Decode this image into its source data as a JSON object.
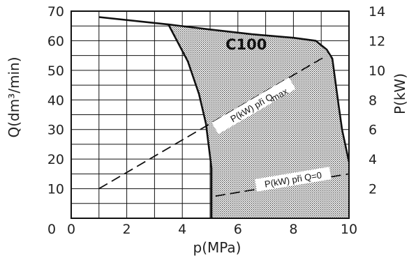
{
  "chart_data": {
    "type": "area",
    "x_axis": {
      "label": "p(MPa)",
      "range": [
        0,
        10
      ],
      "ticks": [
        0,
        2,
        4,
        6,
        8,
        10
      ],
      "tick_labels": [
        "0",
        "2",
        "4",
        "6",
        "8",
        "10"
      ],
      "grid_step": 1
    },
    "y_axis_left": {
      "label": "Q(dm³/min)",
      "range": [
        0,
        70
      ],
      "ticks": [
        10,
        20,
        30,
        40,
        50,
        60,
        70
      ],
      "tick_labels": [
        "10",
        "20",
        "30",
        "40",
        "50",
        "60",
        "70"
      ],
      "grid_step": 5
    },
    "y_axis_right": {
      "label": "P(kW)",
      "range": [
        0,
        14
      ],
      "ticks": [
        2,
        4,
        6,
        8,
        10,
        12,
        14
      ],
      "tick_labels": [
        "2",
        "4",
        "6",
        "8",
        "10",
        "12",
        "14"
      ]
    },
    "grid": true,
    "operating_region": {
      "label": "C100",
      "boundary": [
        {
          "x": 3.5,
          "y": 65.5
        },
        {
          "x": 5.0,
          "y": 63.8
        },
        {
          "x": 6.5,
          "y": 62.2
        },
        {
          "x": 8.0,
          "y": 61.0
        },
        {
          "x": 8.8,
          "y": 60.0
        },
        {
          "x": 9.2,
          "y": 57.0
        },
        {
          "x": 9.4,
          "y": 54.0
        },
        {
          "x": 9.6,
          "y": 40.0
        },
        {
          "x": 9.75,
          "y": 30.0
        },
        {
          "x": 10.0,
          "y": 19.0
        },
        {
          "x": 10.0,
          "y": 0.0
        },
        {
          "x": 5.05,
          "y": 0.0
        },
        {
          "x": 5.05,
          "y": 17.0
        },
        {
          "x": 4.85,
          "y": 32.0
        },
        {
          "x": 4.6,
          "y": 42.0
        },
        {
          "x": 4.2,
          "y": 53.0
        },
        {
          "x": 3.5,
          "y": 65.5
        }
      ]
    },
    "series": [
      {
        "axis": "left",
        "style": "solid",
        "points": [
          {
            "x": 1.0,
            "y": 68.0
          },
          {
            "x": 3.5,
            "y": 65.5
          },
          {
            "x": 5.0,
            "y": 63.8
          },
          {
            "x": 6.5,
            "y": 62.2
          },
          {
            "x": 8.0,
            "y": 61.0
          },
          {
            "x": 8.8,
            "y": 60.0
          },
          {
            "x": 9.2,
            "y": 57.0
          },
          {
            "x": 9.4,
            "y": 54.0
          },
          {
            "x": 9.6,
            "y": 40.0
          },
          {
            "x": 9.75,
            "y": 30.0
          },
          {
            "x": 10.0,
            "y": 19.0
          }
        ]
      },
      {
        "axis": "left",
        "style": "solid",
        "points": [
          {
            "x": 3.5,
            "y": 65.5
          },
          {
            "x": 4.2,
            "y": 53.0
          },
          {
            "x": 4.6,
            "y": 42.0
          },
          {
            "x": 4.85,
            "y": 32.0
          },
          {
            "x": 5.05,
            "y": 17.0
          },
          {
            "x": 5.05,
            "y": 0.0
          }
        ]
      },
      {
        "name": "P(kW) při Qmax",
        "axis": "right",
        "style": "dashed",
        "points": [
          {
            "x": 1.0,
            "y": 2.0
          },
          {
            "x": 9.2,
            "y": 11.0
          }
        ]
      },
      {
        "name": "P(kW) při Q=0",
        "axis": "right",
        "style": "dashed",
        "points": [
          {
            "x": 5.2,
            "y": 1.5
          },
          {
            "x": 10.0,
            "y": 3.0
          }
        ]
      }
    ],
    "annotations": [
      {
        "text": "C100",
        "x": 6.3,
        "y": 57.0
      },
      {
        "text_main": "P(kW) při Q",
        "text_sub": "max",
        "x": 6.6,
        "y": 37.5
      },
      {
        "text_main": "P(kW) při Q=0",
        "x": 8.0,
        "y": 12.5
      }
    ]
  }
}
